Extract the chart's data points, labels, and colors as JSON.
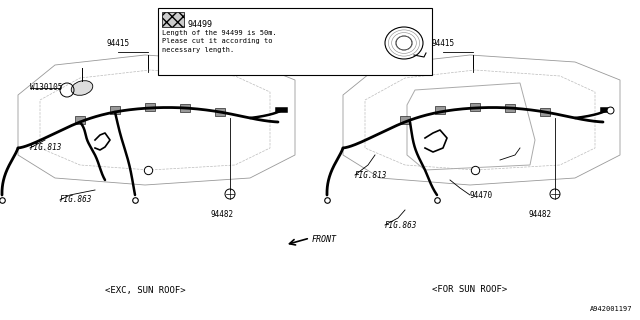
{
  "bg_color": "#ffffff",
  "line_color": "#000000",
  "diagram_id": "A942001197",
  "title_bottom_left": "<EXC, SUN ROOF>",
  "title_bottom_right": "<FOR SUN ROOF>",
  "note_part_num": "94499",
  "note_text": "Length of the 94499 is 50m.\nPlease cut it according to\nnecessary length.",
  "font_size_label": 5.5,
  "font_size_title": 6.5,
  "font_size_note": 5.0,
  "font_size_id": 5.0
}
